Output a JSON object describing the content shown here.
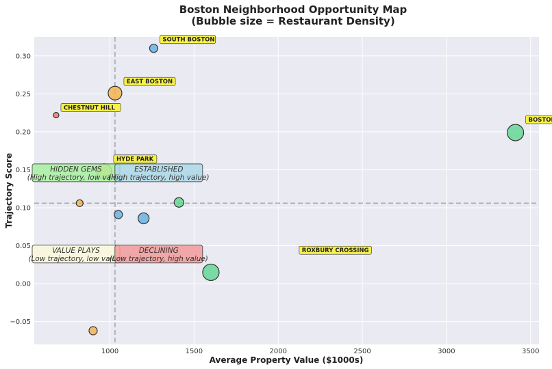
{
  "chart_data": {
    "type": "scatter",
    "title_lines": [
      "Boston Neighborhood Opportunity Map",
      "(Bubble size = Restaurant Density)"
    ],
    "xlabel": "Average Property Value ($1000s)",
    "ylabel": "Trajectory Score",
    "xlim": [
      550,
      3550
    ],
    "ylim": [
      -0.08,
      0.325
    ],
    "xticks": [
      1000,
      1500,
      2000,
      2500,
      3000,
      3500
    ],
    "yticks": [
      -0.05,
      0.0,
      0.05,
      0.1,
      0.15,
      0.2,
      0.25,
      0.3
    ],
    "ytick_labels": [
      "−0.05",
      "0.00",
      "0.05",
      "0.10",
      "0.15",
      "0.20",
      "0.25",
      "0.30"
    ],
    "grid": true,
    "reference_lines": {
      "x": 1030,
      "y": 0.106
    },
    "points": [
      {
        "x": 1260,
        "y": 0.31,
        "size": 6,
        "color": "#5dade2",
        "label": "SOUTH BOSTON"
      },
      {
        "x": 1030,
        "y": 0.251,
        "size": 10,
        "color": "#f5b041",
        "label": "EAST BOSTON"
      },
      {
        "x": 680,
        "y": 0.222,
        "size": 4,
        "color": "#ec7063",
        "label": "CHESTNUT HILL"
      },
      {
        "x": 3410,
        "y": 0.199,
        "size": 12,
        "color": "#58d68d",
        "label": "BOSTON"
      },
      {
        "x": 965,
        "y": 0.148,
        "size": 11,
        "color": "#f5b041",
        "label": "HYDE PARK"
      },
      {
        "x": 1410,
        "y": 0.107,
        "size": 7,
        "color": "#58d68d",
        "label": ""
      },
      {
        "x": 820,
        "y": 0.106,
        "size": 5,
        "color": "#f5b041",
        "label": ""
      },
      {
        "x": 1050,
        "y": 0.091,
        "size": 6,
        "color": "#5dade2",
        "label": ""
      },
      {
        "x": 1200,
        "y": 0.086,
        "size": 8,
        "color": "#5dade2",
        "label": ""
      },
      {
        "x": 1600,
        "y": 0.015,
        "size": 12,
        "color": "#58d68d",
        "label": ""
      },
      {
        "x": 900,
        "y": -0.062,
        "size": 6,
        "color": "#f5b041",
        "label": ""
      },
      {
        "x": 2100,
        "y": 0.044,
        "size": 0,
        "color": "#f5b041",
        "label": "ROXBURY CROSSING"
      }
    ],
    "quadrants": [
      {
        "lines": [
          "HIDDEN GEMS",
          "(High trajectory, low value)"
        ],
        "fill": "#a9f0a0"
      },
      {
        "lines": [
          "ESTABLISHED",
          "(High trajectory, high value)"
        ],
        "fill": "#add8e6"
      },
      {
        "lines": [
          "VALUE PLAYS",
          "(Low trajectory, low value)"
        ],
        "fill": "#fbf8dc"
      },
      {
        "lines": [
          "DECLINING",
          "(Low trajectory, high value)"
        ],
        "fill": "#f29a9a"
      }
    ],
    "label_color": "#f7f24a"
  }
}
